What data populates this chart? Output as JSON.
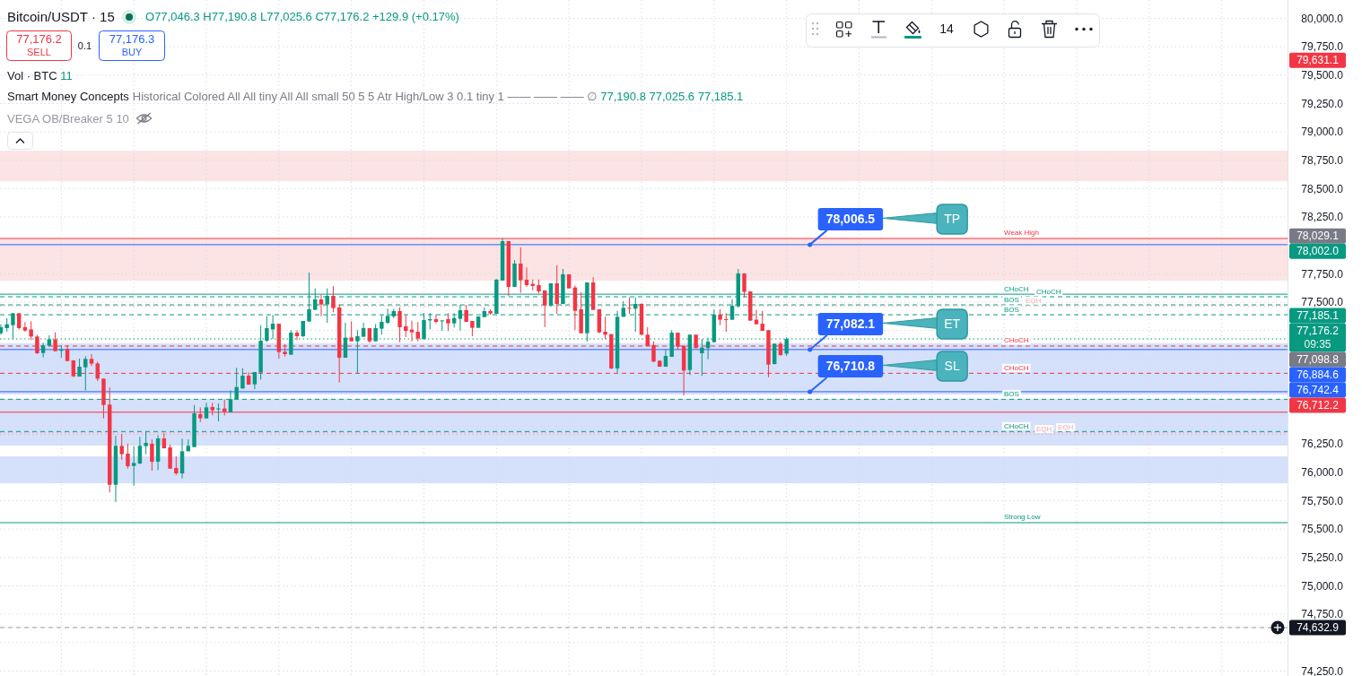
{
  "chart_data": {
    "type": "candlestick",
    "title": "Bitcoin/USDT · 15",
    "categories": [
      null,
      null,
      null,
      null,
      null,
      null,
      null,
      null,
      null,
      null,
      null,
      null,
      null,
      null,
      null,
      null,
      null,
      null,
      null,
      null,
      null,
      null,
      null,
      null,
      null,
      null,
      null,
      null,
      null,
      null,
      null,
      null,
      null,
      null,
      null,
      null,
      null,
      null,
      null,
      null,
      null,
      null,
      null,
      null,
      null,
      null,
      null,
      null,
      null,
      null,
      null,
      null,
      null,
      null,
      null,
      null,
      null,
      null,
      null,
      null,
      null,
      null,
      null,
      null,
      null,
      null,
      null,
      null,
      null,
      null,
      null,
      null,
      null,
      null,
      null,
      null,
      null,
      null,
      null,
      null,
      null,
      null,
      null,
      null,
      null,
      null,
      null,
      null,
      null,
      null,
      null,
      null,
      null,
      null,
      null,
      null,
      null,
      null,
      null,
      null,
      null,
      null,
      null,
      null,
      null,
      null,
      null,
      null,
      null,
      null,
      null,
      null,
      null,
      null,
      null,
      null,
      null,
      null,
      null,
      null,
      null,
      null,
      null,
      null,
      null,
      null,
      null,
      null,
      null,
      null,
      null,
      null,
      null,
      null,
      null,
      null,
      null,
      null,
      null,
      null,
      null,
      null,
      null,
      null,
      null,
      null,
      null,
      null,
      null,
      null,
      null,
      null,
      null,
      null,
      null,
      null,
      null,
      null,
      null,
      null,
      null,
      null,
      null,
      null,
      null,
      null,
      null,
      null,
      null,
      null,
      null,
      null,
      null,
      null,
      null,
      null,
      null,
      null,
      null,
      null,
      null,
      null,
      null,
      null,
      null,
      null,
      null,
      null,
      null,
      null,
      null,
      null,
      null,
      null,
      null,
      null,
      null,
      null,
      null,
      null,
      null,
      null,
      null,
      null,
      null,
      null,
      null,
      null,
      null,
      null,
      null,
      null,
      null
    ],
    "ohlc": [
      [
        77226,
        77305,
        77213,
        77279
      ],
      [
        77271,
        77358,
        77239,
        77305
      ],
      [
        77297,
        77402,
        77173,
        77402
      ],
      [
        77402,
        77402,
        77258,
        77271
      ],
      [
        77279,
        77324,
        77239,
        77250
      ],
      [
        77260,
        77331,
        77166,
        77197
      ],
      [
        77197,
        77213,
        77042,
        77050
      ],
      [
        77052,
        77142,
        77013,
        77118
      ],
      [
        77116,
        77208,
        77108,
        77173
      ],
      [
        77173,
        77234,
        77068,
        77068
      ],
      [
        77071,
        77121,
        77010,
        77081
      ],
      [
        77087,
        77121,
        76981,
        76981
      ],
      [
        76987,
        76987,
        76839,
        76847
      ],
      [
        76844,
        77002,
        76844,
        76931
      ],
      [
        76926,
        77023,
        76721,
        77000
      ],
      [
        77000,
        77042,
        76937,
        76958
      ],
      [
        76960,
        76976,
        76805,
        76826
      ],
      [
        76826,
        76826,
        76476,
        76594
      ],
      [
        76597,
        76747,
        75823,
        75891
      ],
      [
        75891,
        76323,
        75739,
        76234
      ],
      [
        76234,
        76339,
        76112,
        76160
      ],
      [
        76165,
        76252,
        76033,
        76054
      ],
      [
        76057,
        76231,
        75883,
        76083
      ],
      [
        76078,
        76313,
        76073,
        76234
      ],
      [
        76231,
        76357,
        76160,
        76260
      ],
      [
        76252,
        76291,
        76015,
        76094
      ],
      [
        76094,
        76326,
        76020,
        76299
      ],
      [
        76299,
        76349,
        76212,
        76212
      ],
      [
        76220,
        76244,
        76033,
        76033
      ],
      [
        76039,
        76141,
        75975,
        75991
      ],
      [
        75991,
        76297,
        75947,
        76186
      ],
      [
        76186,
        76291,
        76186,
        76234
      ],
      [
        76223,
        76594,
        76223,
        76520
      ],
      [
        76513,
        76573,
        76444,
        76476
      ],
      [
        76476,
        76613,
        76476,
        76573
      ],
      [
        76576,
        76613,
        76502,
        76547
      ],
      [
        76555,
        76607,
        76449,
        76563
      ],
      [
        76563,
        76642,
        76502,
        76536
      ],
      [
        76528,
        76723,
        76528,
        76644
      ],
      [
        76647,
        76923,
        76647,
        76752
      ],
      [
        76739,
        76918,
        76739,
        76852
      ],
      [
        76852,
        76881,
        76773,
        76773
      ],
      [
        76776,
        76884,
        76734,
        76884
      ],
      [
        76879,
        77297,
        76818,
        77160
      ],
      [
        77160,
        77376,
        77147,
        77271
      ],
      [
        77260,
        77389,
        77174,
        77310
      ],
      [
        77310,
        77310,
        77002,
        77060
      ],
      [
        77063,
        77129,
        77021,
        77042
      ],
      [
        77037,
        77253,
        77037,
        77231
      ],
      [
        77231,
        77253,
        77166,
        77200
      ],
      [
        77200,
        77334,
        77192,
        77334
      ],
      [
        77329,
        77761,
        77329,
        77437
      ],
      [
        77432,
        77621,
        77432,
        77524
      ],
      [
        77524,
        77566,
        77376,
        77479
      ],
      [
        77479,
        77621,
        77318,
        77555
      ],
      [
        77555,
        77642,
        77411,
        77447
      ],
      [
        77453,
        77482,
        76792,
        77010
      ],
      [
        77010,
        77318,
        77010,
        77187
      ],
      [
        77189,
        77332,
        77155,
        77155
      ],
      [
        77155,
        77253,
        76871,
        77200
      ],
      [
        77195,
        77318,
        77195,
        77271
      ],
      [
        77271,
        77271,
        77142,
        77155
      ],
      [
        77155,
        77305,
        77155,
        77271
      ],
      [
        77266,
        77384,
        77213,
        77326
      ],
      [
        77318,
        77442,
        77310,
        77379
      ],
      [
        77374,
        77442,
        77358,
        77421
      ],
      [
        77421,
        77455,
        77147,
        77279
      ],
      [
        77287,
        77389,
        77192,
        77247
      ],
      [
        77258,
        77337,
        77155,
        77234
      ],
      [
        77239,
        77324,
        77155,
        77179
      ],
      [
        77174,
        77405,
        77174,
        77342
      ],
      [
        77339,
        77405,
        77260,
        77350
      ],
      [
        77350,
        77389,
        77313,
        77326
      ],
      [
        77337,
        77339,
        77247,
        77339
      ],
      [
        77350,
        77403,
        77245,
        77313
      ],
      [
        77313,
        77403,
        77276,
        77360
      ],
      [
        77353,
        77476,
        77250,
        77429
      ],
      [
        77429,
        77476,
        77326,
        77326
      ],
      [
        77334,
        77334,
        77200,
        77274
      ],
      [
        77274,
        77374,
        77274,
        77374
      ],
      [
        77368,
        77453,
        77368,
        77421
      ],
      [
        77421,
        77437,
        77389,
        77400
      ],
      [
        77397,
        77703,
        77397,
        77698
      ],
      [
        77690,
        78063,
        77690,
        78037
      ],
      [
        78037,
        78037,
        77555,
        77634
      ],
      [
        77634,
        77871,
        77634,
        77840
      ],
      [
        77840,
        77982,
        77582,
        77692
      ],
      [
        77698,
        77805,
        77634,
        77650
      ],
      [
        77661,
        77700,
        77603,
        77642
      ],
      [
        77650,
        77700,
        77576,
        77595
      ],
      [
        77603,
        77603,
        77279,
        77471
      ],
      [
        77471,
        77666,
        77458,
        77666
      ],
      [
        77666,
        77824,
        77397,
        77484
      ],
      [
        77484,
        77792,
        77482,
        77745
      ],
      [
        77745,
        77745,
        77621,
        77621
      ],
      [
        77629,
        77647,
        77253,
        77424
      ],
      [
        77437,
        77587,
        77226,
        77226
      ],
      [
        77226,
        77674,
        77152,
        77674
      ],
      [
        77674,
        77719,
        77432,
        77432
      ],
      [
        77437,
        77437,
        77226,
        77234
      ],
      [
        77239,
        77371,
        77174,
        77213
      ],
      [
        77218,
        77218,
        76910,
        76916
      ],
      [
        76916,
        77424,
        76879,
        77371
      ],
      [
        77371,
        77508,
        77371,
        77450
      ],
      [
        77450,
        77542,
        77397,
        77442
      ],
      [
        77442,
        77542,
        77239,
        77484
      ],
      [
        77484,
        77490,
        77213,
        77213
      ],
      [
        77213,
        77279,
        77113,
        77113
      ],
      [
        77121,
        77155,
        76971,
        76976
      ],
      [
        76984,
        76984,
        76931,
        76931
      ],
      [
        76931,
        77081,
        76931,
        77026
      ],
      [
        77018,
        77253,
        77018,
        77231
      ],
      [
        77231,
        77231,
        77081,
        77108
      ],
      [
        77116,
        77116,
        76679,
        76897
      ],
      [
        76902,
        77218,
        76858,
        77213
      ],
      [
        77213,
        77213,
        77095,
        77095
      ],
      [
        77050,
        77174,
        76850,
        77100
      ],
      [
        77095,
        77187,
        76997,
        77152
      ],
      [
        77147,
        77437,
        77147,
        77389
      ],
      [
        77389,
        77437,
        77297,
        77345
      ],
      [
        77350,
        77403,
        77239,
        77345
      ],
      [
        77345,
        77524,
        77345,
        77468
      ],
      [
        77463,
        77792,
        77450,
        77753
      ],
      [
        77753,
        77753,
        77542,
        77590
      ],
      [
        77595,
        77595,
        77337,
        77337
      ],
      [
        77345,
        77432,
        77305,
        77305
      ],
      [
        77310,
        77424,
        77247,
        77247
      ],
      [
        77253,
        77253,
        76839,
        76950
      ],
      [
        76955,
        77134,
        76950,
        77134
      ],
      [
        77134,
        77152,
        77026,
        77034
      ],
      [
        77046.3,
        77190.8,
        77025.6,
        77176.2
      ],
      null,
      null,
      null,
      null,
      null,
      null,
      null,
      null,
      null,
      null,
      null,
      null,
      null,
      null,
      null,
      null,
      null,
      null,
      null,
      null,
      null,
      null,
      null,
      null,
      null,
      null,
      null,
      null,
      null,
      null,
      null,
      null,
      null,
      null,
      null,
      null,
      null,
      null,
      null,
      null,
      null,
      null,
      null,
      null,
      null,
      null,
      null,
      null,
      null,
      null,
      null,
      null,
      null,
      null,
      null,
      null,
      null,
      null,
      null,
      null,
      null,
      null,
      null,
      null,
      null,
      null,
      null,
      null,
      null,
      null,
      null,
      null,
      null,
      null,
      null,
      null,
      null,
      null,
      null,
      null,
      null,
      null
    ],
    "ylim": [
      74206,
      80162
    ],
    "yticks": [
      {
        "value": 74250,
        "label": "74,250.0"
      },
      {
        "value": 74500,
        "label": null
      },
      {
        "value": 74750,
        "label": "74,750.0"
      },
      {
        "value": 75000,
        "label": "75,000.0"
      },
      {
        "value": 75250,
        "label": "75,250.0"
      },
      {
        "value": 75500,
        "label": "75,500.0"
      },
      {
        "value": 75750,
        "label": "75,750.0"
      },
      {
        "value": 76000,
        "label": "76,000.0"
      },
      {
        "value": 76250,
        "label": "76,250.0"
      },
      {
        "value": 76500,
        "label": null
      },
      {
        "value": 76750,
        "label": null
      },
      {
        "value": 77000,
        "label": null
      },
      {
        "value": 77250,
        "label": null
      },
      {
        "value": 77500,
        "label": "77,500.0"
      },
      {
        "value": 77750,
        "label": "77,750.0"
      },
      {
        "value": 78000,
        "label": null
      },
      {
        "value": 78250,
        "label": "78,250.0"
      },
      {
        "value": 78500,
        "label": "78,500.0"
      },
      {
        "value": 78750,
        "label": "78,750.0"
      },
      {
        "value": 79000,
        "label": "79,000.0"
      },
      {
        "value": 79250,
        "label": "79,250.0"
      },
      {
        "value": 79500,
        "label": "79,500.0"
      },
      {
        "value": 79750,
        "label": "79,750.0"
      },
      {
        "value": 80000,
        "label": "80,000.0"
      }
    ],
    "grid": true,
    "tick_labels": "y",
    "bands": [
      {
        "axis": "y",
        "from": 78566,
        "to": 78834,
        "color": "#fce3e4"
      },
      {
        "axis": "y",
        "from": 77690,
        "to": 78061,
        "color": "#fce3e4"
      },
      {
        "axis": "y",
        "from": 76686,
        "to": 77137,
        "color": "#d5e0fb"
      },
      {
        "axis": "y",
        "from": 76236,
        "to": 76647,
        "color": "#d5e0fb"
      },
      {
        "axis": "y",
        "from": 75904,
        "to": 76141,
        "color": "#d5e0fb"
      }
    ],
    "ref_lines": [
      {
        "axis": "y",
        "value": 77570,
        "label": "CHoCH",
        "color": "#089981",
        "line_style": "solid"
      },
      {
        "axis": "y",
        "value": 76873,
        "label": "CHoCH",
        "color": "#f23645",
        "line_style": "dashed"
      },
      {
        "axis": "y",
        "value": 76530,
        "label": null,
        "color": "#f23645",
        "line_style": "solid"
      },
      {
        "axis": "y",
        "value": 76360,
        "label": "CHoCH",
        "color": "#089981",
        "line_style": "dashed"
      },
      {
        "axis": "y",
        "value": 76335,
        "label": "EQH",
        "color": "#f7a9b0",
        "line_style": "dotted"
      },
      {
        "axis": "y",
        "value": 76350,
        "label": "EQH",
        "color": "#f7a9b0",
        "line_style": "dotted"
      },
      {
        "axis": "y",
        "value": 76644,
        "label": "BOS",
        "color": "#089981",
        "line_style": "dashed"
      },
      {
        "axis": "y",
        "value": 77389,
        "label": "BOS",
        "color": "#089981",
        "line_style": "dashed"
      },
      {
        "axis": "y",
        "value": 77476,
        "label": "BOS",
        "color": "#089981",
        "line_style": "dashed"
      },
      {
        "axis": "y",
        "value": 77466,
        "label": "EQH",
        "color": "#f7a9b0",
        "line_style": "dotted"
      },
      {
        "axis": "y",
        "value": 77113,
        "label": "CHoCH",
        "color": "#f23645",
        "line_style": "dashed"
      },
      {
        "axis": "y",
        "value": 77547,
        "label": "CHoCH",
        "color": "#089981",
        "line_style": "dashed"
      },
      {
        "axis": "y",
        "value": 78061,
        "label": "Weak High",
        "color": "#f23645",
        "line_style": "solid"
      },
      {
        "axis": "y",
        "value": 75557,
        "label": "Strong Low",
        "color": "#089981",
        "line_style": "solid"
      },
      {
        "axis": "y",
        "value": 77176.2,
        "label": null,
        "color": "#089981",
        "line_style": "dotted"
      },
      {
        "axis": "y",
        "value": 74632.9,
        "label": null,
        "color": "#9598a1",
        "line_style": "dashed"
      },
      {
        "axis": "y",
        "value": 78006.5,
        "label": "TP",
        "color": "#2962ff",
        "line_style": "solid"
      },
      {
        "axis": "y",
        "value": 77082.1,
        "label": "ET",
        "color": "#2962ff",
        "line_style": "solid"
      },
      {
        "axis": "y",
        "value": 76710.8,
        "label": "SL",
        "color": "#2962ff",
        "line_style": "solid"
      }
    ],
    "annotations": [
      "O77,046.3 H77,190.8 L77,025.6 C77,176.2 +129.9 (+0.17%)",
      "77,176.2",
      "SELL",
      "0.1",
      "77,176.3",
      "BUY",
      "Vol · BTC 11",
      "Smart Money Concepts",
      "Historical Colored All All tiny All All small 50 5 5 Atr High/Low 3 0.1 tiny 1 —— —— —— ∅ 77,190.8 77,025.6 77,185.1",
      "VEGA OB/Breaker 5 10",
      "14",
      "79,631.1",
      "78,029.1",
      "78,002.0",
      "77,185.1",
      "77,176.2",
      "09:35",
      "77,098.8",
      "76,884.6",
      "76,742.4",
      "76,712.2",
      "74,632.9",
      {
        "text": "78,006.5",
        "y": 78006.5
      },
      {
        "text": "77,082.1",
        "y": 77082.1
      },
      {
        "text": "76,710.8",
        "y": 76710.8
      }
    ]
  }
}
